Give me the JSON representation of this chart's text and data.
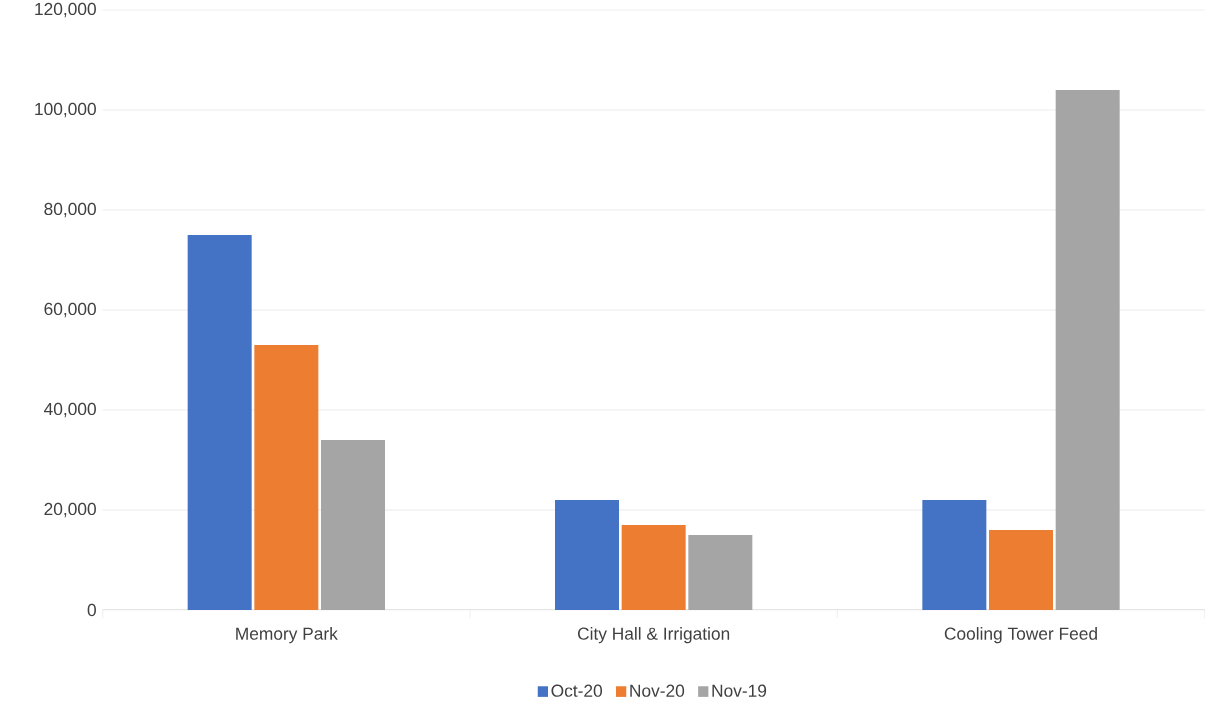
{
  "chart_data": {
    "type": "bar",
    "categories": [
      "Memory Park",
      "City Hall & Irrigation",
      "Cooling Tower Feed"
    ],
    "series": [
      {
        "name": "Oct-20",
        "color": "#4472c4",
        "values": [
          75000,
          22000,
          22000
        ]
      },
      {
        "name": "Nov-20",
        "color": "#ed7d31",
        "values": [
          53000,
          17000,
          16000
        ]
      },
      {
        "name": "Nov-19",
        "color": "#a5a5a5",
        "values": [
          34000,
          15000,
          104000
        ]
      }
    ],
    "ylim": [
      0,
      120000
    ],
    "yticks": [
      {
        "value": 0,
        "label": "0"
      },
      {
        "value": 20000,
        "label": "20,000"
      },
      {
        "value": 40000,
        "label": "40,000"
      },
      {
        "value": 60000,
        "label": "60,000"
      },
      {
        "value": 80000,
        "label": "80,000"
      },
      {
        "value": 100000,
        "label": "100,000"
      },
      {
        "value": 120000,
        "label": "120,000"
      }
    ],
    "grid": "y",
    "legend": "bottom"
  }
}
